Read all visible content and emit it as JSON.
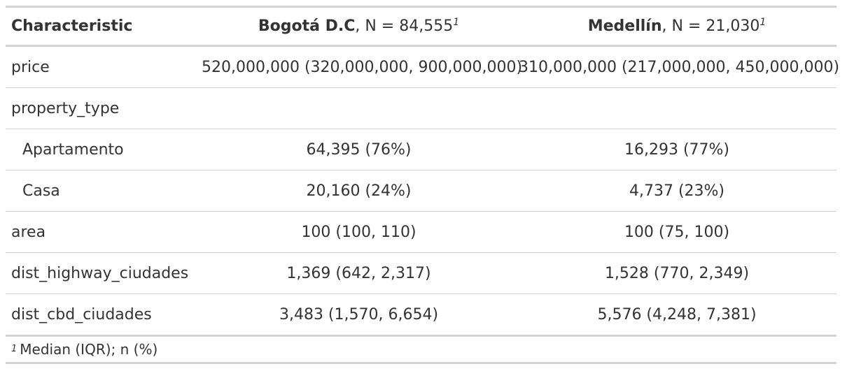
{
  "header": {
    "characteristic": "Characteristic",
    "col1_name": "Bogotá D.C",
    "col1_n": ", N = 84,555",
    "col2_name": "Medellín",
    "col2_n": ", N = 21,030",
    "footnote_mark": "1"
  },
  "rows": {
    "price": {
      "label": "price",
      "bogota": "520,000,000 (320,000,000, 900,000,000)",
      "medellin": "310,000,000 (217,000,000, 450,000,000)"
    },
    "property_type": {
      "label": "property_type",
      "bogota": "",
      "medellin": ""
    },
    "apartamento": {
      "label": "Apartamento",
      "bogota": "64,395 (76%)",
      "medellin": "16,293 (77%)"
    },
    "casa": {
      "label": "Casa",
      "bogota": "20,160 (24%)",
      "medellin": "4,737 (23%)"
    },
    "area": {
      "label": "area",
      "bogota": "100 (100, 110)",
      "medellin": "100 (75, 100)"
    },
    "dist_highway": {
      "label": "dist_highway_ciudades",
      "bogota": "1,369 (642, 2,317)",
      "medellin": "1,528 (770, 2,349)"
    },
    "dist_cbd": {
      "label": "dist_cbd_ciudades",
      "bogota": "3,483 (1,570, 6,654)",
      "medellin": "5,576 (4,248, 7,381)"
    }
  },
  "footnote": {
    "mark": "1",
    "text": "Median (IQR); n (%)"
  }
}
